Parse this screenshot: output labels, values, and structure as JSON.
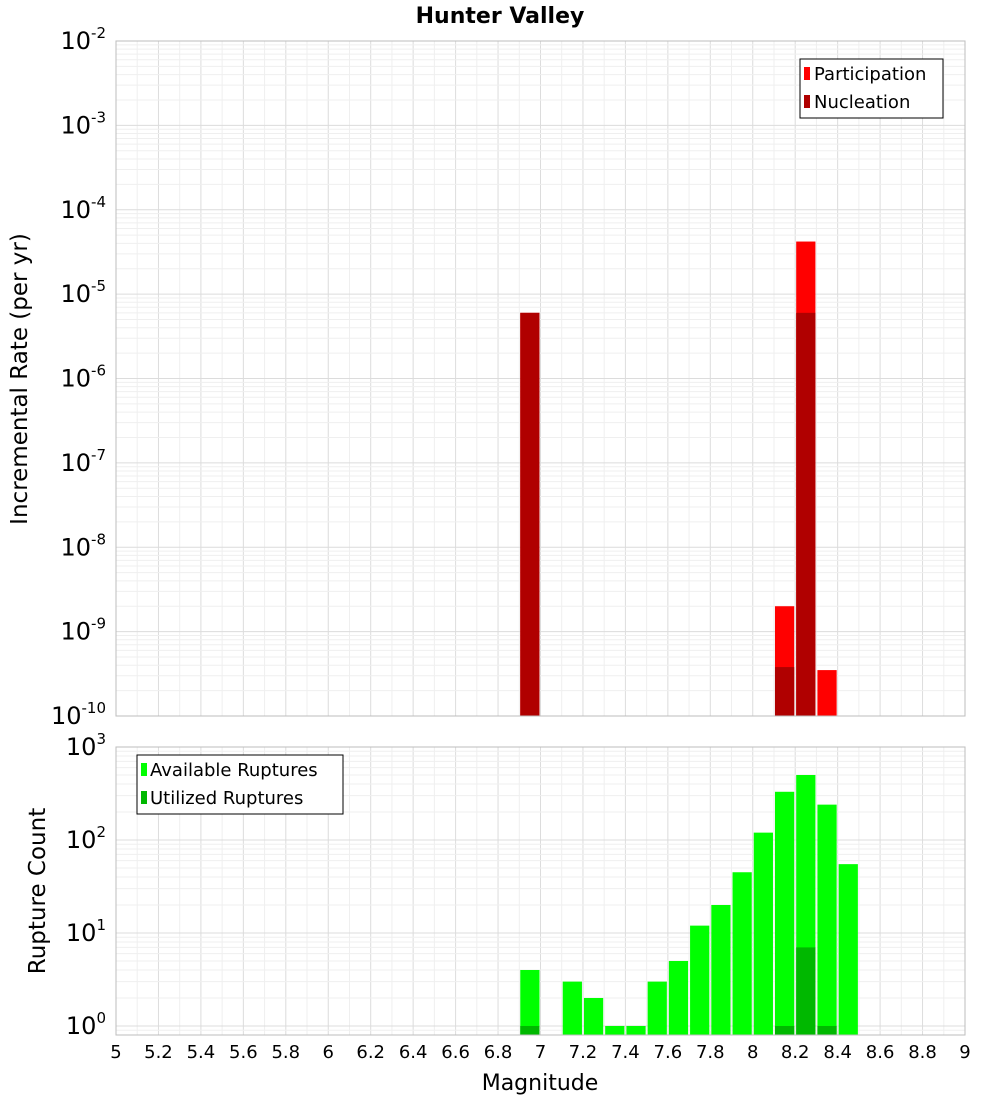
{
  "title": "Hunter Valley",
  "xlabel": "Magnitude",
  "chart_data": [
    {
      "type": "bar",
      "panel": "top",
      "ylabel": "Incremental Rate (per yr)",
      "yscale": "log",
      "ylim": [
        1e-10,
        0.01
      ],
      "xlim": [
        5,
        9
      ],
      "bar_width": 0.1,
      "legend": {
        "placement": "top-right"
      },
      "series": [
        {
          "name": "Participation",
          "color": "#ff0000",
          "points": [
            {
              "x": 6.95,
              "y": 6e-06
            },
            {
              "x": 8.15,
              "y": 2e-09
            },
            {
              "x": 8.25,
              "y": 4.2e-05
            },
            {
              "x": 8.35,
              "y": 3.5e-10
            }
          ]
        },
        {
          "name": "Nucleation",
          "color": "#b00000",
          "points": [
            {
              "x": 6.95,
              "y": 6e-06
            },
            {
              "x": 8.15,
              "y": 3.8e-10
            },
            {
              "x": 8.25,
              "y": 6e-06
            }
          ]
        }
      ]
    },
    {
      "type": "bar",
      "panel": "bottom",
      "ylabel": "Rupture Count",
      "yscale": "log",
      "ylim": [
        0.8,
        1000
      ],
      "xlim": [
        5,
        9
      ],
      "bar_width": 0.1,
      "legend": {
        "placement": "top-left"
      },
      "series": [
        {
          "name": "Available Ruptures",
          "color": "#00ff00",
          "points": [
            {
              "x": 6.95,
              "y": 4
            },
            {
              "x": 7.15,
              "y": 3
            },
            {
              "x": 7.25,
              "y": 2
            },
            {
              "x": 7.35,
              "y": 1
            },
            {
              "x": 7.45,
              "y": 1
            },
            {
              "x": 7.55,
              "y": 3
            },
            {
              "x": 7.65,
              "y": 5
            },
            {
              "x": 7.75,
              "y": 12
            },
            {
              "x": 7.85,
              "y": 20
            },
            {
              "x": 7.95,
              "y": 45
            },
            {
              "x": 8.05,
              "y": 120
            },
            {
              "x": 8.15,
              "y": 330
            },
            {
              "x": 8.25,
              "y": 500
            },
            {
              "x": 8.35,
              "y": 240
            },
            {
              "x": 8.45,
              "y": 55
            }
          ]
        },
        {
          "name": "Utilized Ruptures",
          "color": "#00b800",
          "points": [
            {
              "x": 6.95,
              "y": 1
            },
            {
              "x": 8.15,
              "y": 1
            },
            {
              "x": 8.25,
              "y": 7
            },
            {
              "x": 8.35,
              "y": 1
            }
          ]
        }
      ]
    }
  ],
  "x_ticks": [
    "5",
    "5.2",
    "5.4",
    "5.6",
    "5.8",
    "6",
    "6.2",
    "6.4",
    "6.6",
    "6.8",
    "7",
    "7.2",
    "7.4",
    "7.6",
    "7.8",
    "8",
    "8.2",
    "8.4",
    "8.6",
    "8.8",
    "9"
  ],
  "top_y_ticks": [
    {
      "base": "10",
      "exp": "-2"
    },
    {
      "base": "10",
      "exp": "-3"
    },
    {
      "base": "10",
      "exp": "-4"
    },
    {
      "base": "10",
      "exp": "-5"
    },
    {
      "base": "10",
      "exp": "-6"
    },
    {
      "base": "10",
      "exp": "-7"
    },
    {
      "base": "10",
      "exp": "-8"
    },
    {
      "base": "10",
      "exp": "-9"
    },
    {
      "base": "10",
      "exp": "-10"
    }
  ],
  "bottom_y_ticks": [
    {
      "base": "10",
      "exp": "3"
    },
    {
      "base": "10",
      "exp": "2"
    },
    {
      "base": "10",
      "exp": "1"
    },
    {
      "base": "10",
      "exp": "0"
    }
  ]
}
